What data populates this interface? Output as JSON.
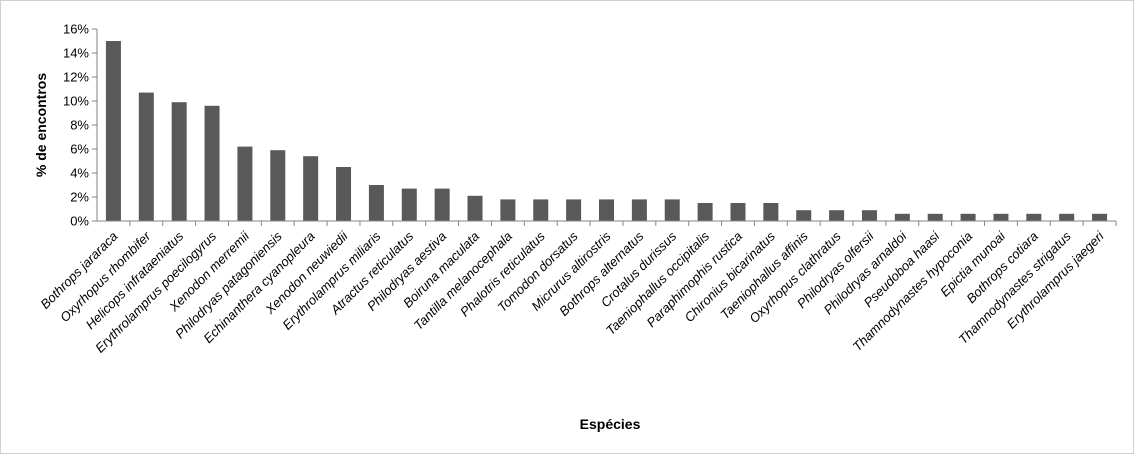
{
  "chart_data": {
    "type": "bar",
    "title": "",
    "xlabel": "Espécies",
    "ylabel": "% de encontros",
    "ylim": [
      0,
      16
    ],
    "yticks": [
      0,
      2,
      4,
      6,
      8,
      10,
      12,
      14,
      16
    ],
    "ytick_labels": [
      "0%",
      "2%",
      "4%",
      "6%",
      "8%",
      "10%",
      "12%",
      "14%",
      "16%"
    ],
    "grid": false,
    "legend": "none",
    "bar_color": "#595959",
    "categories": [
      "Bothrops jararaca",
      "Oxyrhopus rhombifer",
      "Helicops infrataeniatus",
      "Erythrolamprus poecilogyrus",
      "Xenodon merremii",
      "Philodryas patagoniensis",
      "Echinanthera cyanopleura",
      "Xenodon neuwiedii",
      "Erythrolamprus miliaris",
      "Atractus reticulatus",
      "Philodryas aestiva",
      "Boiruna maculata",
      "Tantilla melanocephala",
      "Phalotris reticulatus",
      "Tomodon dorsatus",
      "Micrurus altirostris",
      "Bothrops alternatus",
      "Crotalus durissus",
      "Taeniophallus occipitalis",
      "Paraphimophis rustica",
      "Chironius bicarinatus",
      "Taeniophallus affinis",
      "Oxyrhopus clathratus",
      "Philodryas olfersii",
      "Philodryas arnaldoi",
      "Pseudoboa haasi",
      "Thamnodynastes hypoconia",
      "Epictia munoai",
      "Bothrops cotiara",
      "Thamnodynastes strigatus",
      "Erythrolamprus jaegeri"
    ],
    "values": [
      15.0,
      10.7,
      9.9,
      9.6,
      6.2,
      5.9,
      5.4,
      4.5,
      3.0,
      2.7,
      2.7,
      2.1,
      1.8,
      1.8,
      1.8,
      1.8,
      1.8,
      1.8,
      1.5,
      1.5,
      1.5,
      0.9,
      0.9,
      0.9,
      0.6,
      0.6,
      0.6,
      0.6,
      0.6,
      0.6,
      0.6
    ]
  }
}
